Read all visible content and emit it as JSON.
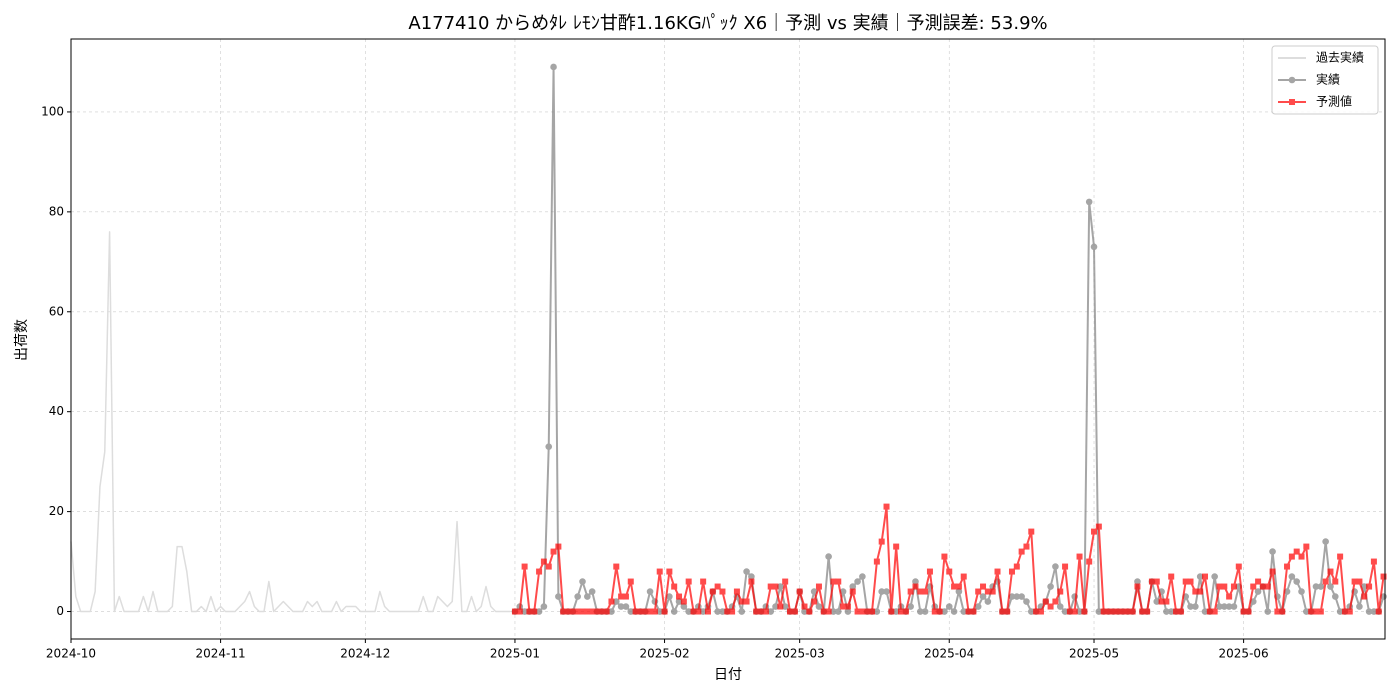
{
  "chart_data": {
    "type": "line",
    "title": "A177410 からめﾀﾚ ﾚﾓﾝ甘酢1.16KGﾊﾟｯｸ X6｜予測 vs 実績｜予測誤差: 53.9%",
    "x_label": "日付",
    "y_label": "出荷数",
    "ylim": [
      -5.5,
      114.6
    ],
    "yticks": [
      0,
      20,
      40,
      60,
      80,
      100
    ],
    "grid": true,
    "legend_loc": "upper right",
    "x": [
      "2024-10",
      null,
      null,
      null,
      null,
      null,
      null,
      null,
      null,
      null,
      null,
      null,
      null,
      null,
      null,
      null,
      null,
      null,
      null,
      null,
      null,
      null,
      null,
      null,
      null,
      null,
      null,
      null,
      null,
      null,
      null,
      "2024-11",
      null,
      null,
      null,
      null,
      null,
      null,
      null,
      null,
      null,
      null,
      null,
      null,
      null,
      null,
      null,
      null,
      null,
      null,
      null,
      null,
      null,
      null,
      null,
      null,
      null,
      null,
      null,
      null,
      null,
      "2024-12",
      null,
      null,
      null,
      null,
      null,
      null,
      null,
      null,
      null,
      null,
      null,
      null,
      null,
      null,
      null,
      null,
      null,
      null,
      null,
      null,
      null,
      null,
      null,
      null,
      null,
      null,
      null,
      null,
      null,
      null,
      "2025-01",
      null,
      null,
      null,
      null,
      null,
      null,
      null,
      null,
      null,
      null,
      null,
      null,
      null,
      null,
      null,
      null,
      null,
      null,
      null,
      null,
      null,
      null,
      null,
      null,
      null,
      null,
      null,
      null,
      null,
      null,
      "2025-02",
      null,
      null,
      null,
      null,
      null,
      null,
      null,
      null,
      null,
      null,
      null,
      null,
      null,
      null,
      null,
      null,
      null,
      null,
      null,
      null,
      null,
      null,
      null,
      null,
      null,
      null,
      null,
      "2025-03",
      null,
      null,
      null,
      null,
      null,
      null,
      null,
      null,
      null,
      null,
      null,
      null,
      null,
      null,
      null,
      null,
      null,
      null,
      null,
      null,
      null,
      null,
      null,
      null,
      null,
      null,
      null,
      null,
      null,
      null,
      "2025-04",
      null,
      null,
      null,
      null,
      null,
      null,
      null,
      null,
      null,
      null,
      null,
      null,
      null,
      null,
      null,
      null,
      null,
      null,
      null,
      null,
      null,
      null,
      null,
      null,
      null,
      null,
      null,
      null,
      null,
      "2025-05",
      null,
      null,
      null,
      null,
      null,
      null,
      null,
      null,
      null,
      null,
      null,
      null,
      null,
      null,
      null,
      null,
      null,
      null,
      null,
      null,
      null,
      null,
      null,
      null,
      null,
      null,
      null,
      null,
      null,
      null,
      "2025-06",
      null,
      null,
      null,
      null,
      null,
      null,
      null,
      null,
      null,
      null,
      null,
      null,
      null,
      null,
      null,
      null,
      null,
      null,
      null,
      null,
      null,
      null,
      null,
      null,
      null,
      null,
      null,
      null,
      null
    ],
    "series": [
      {
        "name": "過去実績",
        "color": "#dddddd",
        "marker": "none",
        "alpha": 1,
        "values": [
          14,
          3,
          0,
          0,
          0,
          4,
          25,
          32,
          76,
          0,
          3,
          0,
          0,
          0,
          0,
          3,
          0,
          4,
          0,
          0,
          0,
          1,
          13,
          13,
          8,
          0,
          0,
          1,
          0,
          3,
          0,
          1,
          0,
          0,
          0,
          1,
          2,
          4,
          1,
          0,
          0,
          6,
          0,
          1,
          2,
          1,
          0,
          0,
          0,
          2,
          1,
          2,
          0,
          0,
          0,
          2,
          0,
          1,
          1,
          1,
          0,
          0,
          0,
          0,
          4,
          1,
          0,
          0,
          0,
          0,
          0,
          0,
          0,
          3,
          0,
          0,
          3,
          2,
          1,
          2,
          18,
          0,
          0,
          3,
          0,
          1,
          5,
          1,
          0,
          0,
          0,
          0,
          null,
          null,
          null,
          null,
          null,
          null,
          null,
          null,
          null,
          null,
          null,
          null,
          null,
          null,
          null,
          null,
          null,
          null,
          null,
          null,
          null,
          null,
          null,
          null,
          null,
          null,
          null,
          null,
          null,
          null,
          null,
          null,
          null,
          null,
          null,
          null,
          null,
          null,
          null,
          null,
          null,
          null,
          null,
          null,
          null,
          null,
          null,
          null,
          null,
          null,
          null,
          null,
          null,
          null,
          null,
          null,
          null,
          null,
          null,
          null,
          null,
          null,
          null,
          null,
          null,
          null,
          null,
          null,
          null,
          null,
          null,
          null,
          null,
          null,
          null,
          null,
          null,
          null,
          null,
          null,
          null,
          null,
          null,
          null,
          null,
          null,
          null,
          null,
          null,
          null,
          null,
          null,
          null,
          null,
          null,
          null,
          null,
          null,
          null,
          null,
          null,
          null,
          null,
          null,
          null,
          null,
          null,
          null,
          null,
          null,
          null,
          null,
          null,
          null,
          null,
          null,
          null,
          null,
          null,
          null,
          null,
          null,
          null,
          null,
          null,
          null,
          null,
          null,
          null,
          null,
          null,
          null,
          null,
          null,
          null,
          null,
          null,
          null,
          null,
          null,
          null,
          null,
          null,
          null,
          null,
          null,
          null,
          null,
          null,
          null,
          null,
          null,
          null,
          null,
          null,
          null,
          null,
          null,
          null,
          null,
          null,
          null,
          null,
          null,
          null,
          null,
          null,
          null,
          null,
          null,
          null,
          null,
          null,
          null,
          null,
          null,
          null,
          null,
          null,
          null,
          null
        ]
      },
      {
        "name": "実績",
        "color": "#808080",
        "marker": "circle",
        "alpha": 0.7,
        "values": [
          null,
          null,
          null,
          null,
          null,
          null,
          null,
          null,
          null,
          null,
          null,
          null,
          null,
          null,
          null,
          null,
          null,
          null,
          null,
          null,
          null,
          null,
          null,
          null,
          null,
          null,
          null,
          null,
          null,
          null,
          null,
          null,
          null,
          null,
          null,
          null,
          null,
          null,
          null,
          null,
          null,
          null,
          null,
          null,
          null,
          null,
          null,
          null,
          null,
          null,
          null,
          null,
          null,
          null,
          null,
          null,
          null,
          null,
          null,
          null,
          null,
          null,
          null,
          null,
          null,
          null,
          null,
          null,
          null,
          null,
          null,
          null,
          null,
          null,
          null,
          null,
          null,
          null,
          null,
          null,
          null,
          null,
          null,
          null,
          null,
          null,
          null,
          null,
          null,
          null,
          null,
          null,
          0,
          1,
          0,
          0,
          0,
          0,
          1,
          33,
          109,
          3,
          0,
          0,
          0,
          3,
          6,
          3,
          4,
          0,
          0,
          0,
          0,
          2,
          1,
          1,
          0,
          0,
          0,
          0,
          4,
          2,
          0,
          0,
          3,
          0,
          2,
          1,
          0,
          0,
          1,
          0,
          1,
          4,
          0,
          0,
          0,
          1,
          3,
          0,
          8,
          7,
          0,
          0,
          1,
          0,
          1,
          5,
          1,
          0,
          0,
          4,
          0,
          0,
          4,
          1,
          0,
          11,
          0,
          0,
          4,
          0,
          5,
          6,
          7,
          0,
          0,
          0,
          4,
          4,
          0,
          0,
          1,
          0,
          1,
          6,
          0,
          0,
          5,
          1,
          0,
          0,
          1,
          0,
          4,
          0,
          0,
          0,
          1,
          3,
          2,
          5,
          6,
          0,
          0,
          3,
          3,
          3,
          2,
          0,
          0,
          1,
          2,
          5,
          9,
          1,
          0,
          0,
          3,
          0,
          0,
          82,
          73,
          0,
          0,
          0,
          0,
          0,
          0,
          0,
          0,
          6,
          0,
          0,
          6,
          2,
          4,
          0,
          0,
          0,
          0,
          3,
          1,
          1,
          7,
          0,
          0,
          7,
          1,
          1,
          1,
          1,
          5,
          0,
          0,
          2,
          4,
          5,
          0,
          12,
          3,
          0,
          4,
          7,
          6,
          4,
          0,
          0,
          5,
          5,
          14,
          5,
          3,
          0,
          0,
          1,
          4,
          1,
          5,
          0,
          0,
          0,
          3
        ]
      },
      {
        "name": "予測値",
        "color": "#ff0000",
        "marker": "square",
        "alpha": 0.7,
        "values": [
          null,
          null,
          null,
          null,
          null,
          null,
          null,
          null,
          null,
          null,
          null,
          null,
          null,
          null,
          null,
          null,
          null,
          null,
          null,
          null,
          null,
          null,
          null,
          null,
          null,
          null,
          null,
          null,
          null,
          null,
          null,
          null,
          null,
          null,
          null,
          null,
          null,
          null,
          null,
          null,
          null,
          null,
          null,
          null,
          null,
          null,
          null,
          null,
          null,
          null,
          null,
          null,
          null,
          null,
          null,
          null,
          null,
          null,
          null,
          null,
          null,
          null,
          null,
          null,
          null,
          null,
          null,
          null,
          null,
          null,
          null,
          null,
          null,
          null,
          null,
          null,
          null,
          null,
          null,
          null,
          null,
          null,
          null,
          null,
          null,
          null,
          null,
          null,
          null,
          null,
          null,
          null,
          0,
          0,
          9,
          0,
          0,
          8,
          10,
          9,
          12,
          13,
          0,
          0,
          0,
          0,
          0,
          0,
          0,
          0,
          0,
          0,
          2,
          9,
          3,
          3,
          6,
          0,
          0,
          0,
          0,
          0,
          8,
          0,
          8,
          5,
          3,
          2,
          6,
          0,
          0,
          6,
          0,
          4,
          5,
          4,
          0,
          0,
          4,
          2,
          2,
          6,
          0,
          0,
          0,
          5,
          5,
          1,
          6,
          0,
          0,
          4,
          1,
          0,
          2,
          5,
          0,
          0,
          6,
          6,
          1,
          1,
          4,
          0,
          0,
          0,
          0,
          10,
          14,
          21,
          0,
          13,
          0,
          0,
          4,
          5,
          4,
          4,
          8,
          0,
          0,
          11,
          8,
          5,
          5,
          7,
          0,
          0,
          4,
          5,
          4,
          4,
          8,
          0,
          0,
          8,
          9,
          12,
          13,
          16,
          0,
          0,
          2,
          1,
          2,
          4,
          9,
          0,
          0,
          11,
          0,
          10,
          16,
          17,
          0,
          0,
          0,
          0,
          0,
          0,
          0,
          5,
          0,
          0,
          6,
          6,
          2,
          2,
          7,
          0,
          0,
          6,
          6,
          4,
          4,
          7,
          0,
          0,
          5,
          5,
          3,
          5,
          9,
          0,
          0,
          5,
          6,
          5,
          5,
          8,
          0,
          0,
          9,
          11,
          12,
          11,
          13,
          0,
          0,
          0,
          6,
          8,
          6,
          11,
          0,
          0,
          6,
          6,
          3,
          5,
          10,
          0,
          7
        ]
      }
    ]
  }
}
